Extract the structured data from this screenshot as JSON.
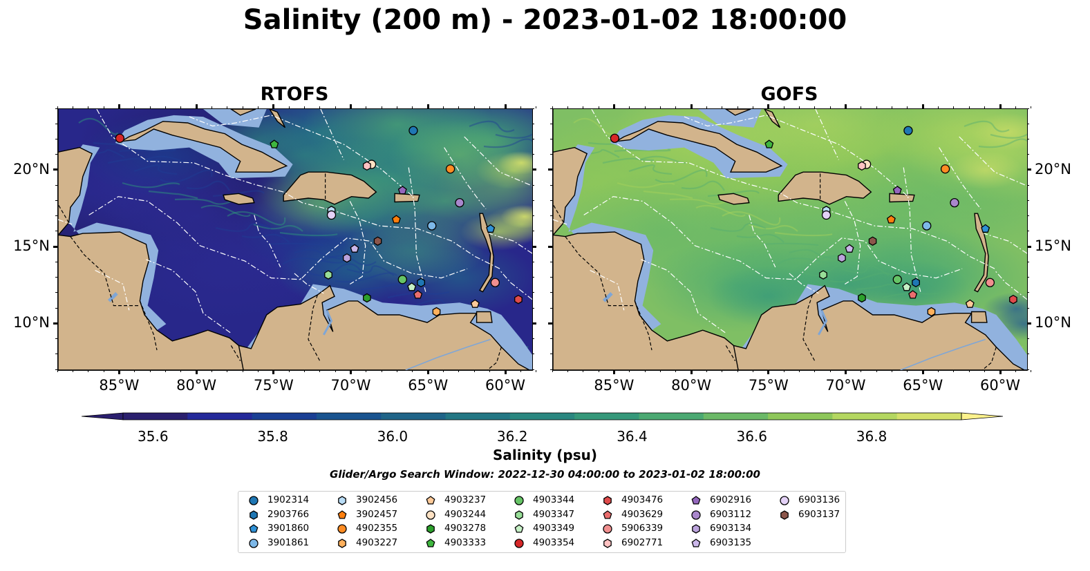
{
  "title": "Salinity (200 m) - 2023-01-02 18:00:00",
  "panels": [
    {
      "title": "RTOFS"
    },
    {
      "title": "GOFS"
    }
  ],
  "x_ticks": [
    "85°W",
    "80°W",
    "75°W",
    "70°W",
    "65°W",
    "60°W"
  ],
  "x_tick_values": [
    -85,
    -80,
    -75,
    -70,
    -65,
    -60
  ],
  "y_ticks": [
    "20°N",
    "15°N",
    "10°N"
  ],
  "y_tick_values": [
    20,
    15,
    10
  ],
  "extent": {
    "lon": [
      -89,
      -58.3
    ],
    "lat": [
      7,
      24
    ]
  },
  "colorbar": {
    "label": "Salinity (psu)",
    "ticks": [
      "35.6",
      "35.8",
      "36.0",
      "36.2",
      "36.4",
      "36.6",
      "36.8"
    ],
    "tick_values": [
      35.6,
      35.8,
      36.0,
      36.2,
      36.4,
      36.6,
      36.8
    ],
    "range": [
      35.55,
      36.95
    ],
    "extend": "both",
    "colors": [
      "#2a1f6e",
      "#24299a",
      "#1a3f94",
      "#19538f",
      "#1f6488",
      "#237784",
      "#2a8780",
      "#35987a",
      "#4ba972",
      "#6bb967",
      "#8ec75a",
      "#b4d760",
      "#d4e06a"
    ]
  },
  "search_window": "Glider/Argo Search Window: 2022-12-30 04:00:00 to 2023-01-02 18:00:00",
  "colors": {
    "land": "#d2b48c",
    "shelf": "#91b2de",
    "rivers": "#7fa6d6"
  },
  "legend": [
    {
      "id": "1902314",
      "marker": "circle",
      "color": "#1f77b4",
      "lon": -66.0,
      "lat": 22.6
    },
    {
      "id": "2903766",
      "marker": "hexagon",
      "color": "#1f77b4",
      "lon": -65.5,
      "lat": 12.7
    },
    {
      "id": "3901860",
      "marker": "pentagon",
      "color": "#2f91d6",
      "lon": -61.0,
      "lat": 16.2
    },
    {
      "id": "3901861",
      "marker": "circle",
      "color": "#7db8e8",
      "lon": -64.8,
      "lat": 16.4
    },
    {
      "id": "3902456",
      "marker": "hexagon",
      "color": "#b9dcf5",
      "lon": -71.3,
      "lat": 17.4
    },
    {
      "id": "3902457",
      "marker": "pentagon",
      "color": "#ff7f0e",
      "lon": -67.1,
      "lat": 16.8
    },
    {
      "id": "4902355",
      "marker": "circle",
      "color": "#ff8c23",
      "lon": -63.6,
      "lat": 20.1
    },
    {
      "id": "4903227",
      "marker": "hexagon",
      "color": "#ffb05c",
      "lon": -64.5,
      "lat": 10.8
    },
    {
      "id": "4903237",
      "marker": "pentagon",
      "color": "#ffca99",
      "lon": -62.0,
      "lat": 11.3
    },
    {
      "id": "4903244",
      "marker": "circle",
      "color": "#ffe2c4",
      "lon": -68.7,
      "lat": 20.4
    },
    {
      "id": "4903278",
      "marker": "hexagon",
      "color": "#2ca02c",
      "lon": -69.0,
      "lat": 11.7
    },
    {
      "id": "4903333",
      "marker": "pentagon",
      "color": "#3fb63f",
      "lon": -75.0,
      "lat": 21.7
    },
    {
      "id": "4903344",
      "marker": "circle",
      "color": "#66c466",
      "lon": -66.7,
      "lat": 12.9
    },
    {
      "id": "4903347",
      "marker": "hexagon",
      "color": "#98de98",
      "lon": -71.5,
      "lat": 13.2
    },
    {
      "id": "4903349",
      "marker": "pentagon",
      "color": "#c6f0c6",
      "lon": -66.1,
      "lat": 12.4
    },
    {
      "id": "4903354",
      "marker": "circle",
      "color": "#d62728",
      "lon": -85.0,
      "lat": 22.1
    },
    {
      "id": "4903476",
      "marker": "hexagon",
      "color": "#e04b4b",
      "lon": -59.2,
      "lat": 11.6
    },
    {
      "id": "4903629",
      "marker": "pentagon",
      "color": "#eb6e6e",
      "lon": -65.7,
      "lat": 11.9
    },
    {
      "id": "5906339",
      "marker": "circle",
      "color": "#f08f8f",
      "lon": -60.7,
      "lat": 12.7
    },
    {
      "id": "6902771",
      "marker": "hexagon",
      "color": "#ffc2c2",
      "lon": -69.0,
      "lat": 20.3
    },
    {
      "id": "6902916",
      "marker": "pentagon",
      "color": "#9467bd",
      "lon": -66.7,
      "lat": 18.7
    },
    {
      "id": "6903112",
      "marker": "circle",
      "color": "#a987cc",
      "lon": -63.0,
      "lat": 17.9
    },
    {
      "id": "6903134",
      "marker": "hexagon",
      "color": "#bba3dc",
      "lon": -70.3,
      "lat": 14.3
    },
    {
      "id": "6903135",
      "marker": "pentagon",
      "color": "#cbb7ea",
      "lon": -69.8,
      "lat": 14.9
    },
    {
      "id": "6903136",
      "marker": "circle",
      "color": "#e4d2f7",
      "lon": -71.3,
      "lat": 17.1
    },
    {
      "id": "6903137",
      "marker": "hexagon",
      "color": "#8c564b",
      "lon": -68.3,
      "lat": 15.4
    }
  ]
}
